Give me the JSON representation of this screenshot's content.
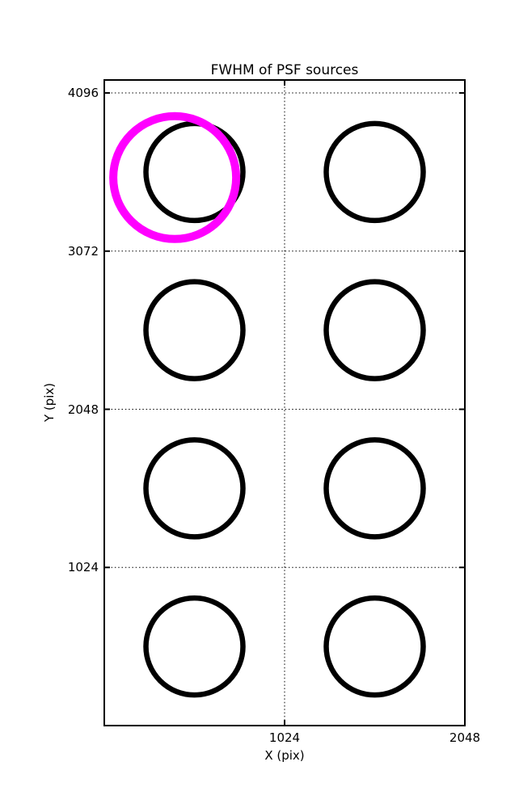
{
  "figure": {
    "background": "#ffffff"
  },
  "chart_data": {
    "type": "scatter",
    "title": "FWHM of PSF sources",
    "xlabel": "X (pix)",
    "ylabel": "Y (pix)",
    "xlim": [
      0,
      2048
    ],
    "ylim": [
      0,
      4180
    ],
    "xticks": [
      1024,
      2048
    ],
    "yticks": [
      1024,
      2048,
      3072,
      4096
    ],
    "grid": {
      "style": "dotted",
      "color": "#000000"
    },
    "axis_color": "#000000",
    "legend": "none",
    "series": [
      {
        "name": "psf-sources",
        "marker": "open-circle",
        "color": "#000000",
        "marker_radius_px": 60,
        "marker_stroke_px": 6.5,
        "points": [
          {
            "x": 512,
            "y": 3584
          },
          {
            "x": 1536,
            "y": 3584
          },
          {
            "x": 512,
            "y": 2560
          },
          {
            "x": 1536,
            "y": 2560
          },
          {
            "x": 512,
            "y": 1536
          },
          {
            "x": 1536,
            "y": 1536
          },
          {
            "x": 512,
            "y": 512
          },
          {
            "x": 1536,
            "y": 512
          }
        ]
      },
      {
        "name": "highlighted-source",
        "marker": "open-circle",
        "color": "#ff00ff",
        "marker_radius_px": 76,
        "marker_stroke_px": 10,
        "points": [
          {
            "x": 400,
            "y": 3548
          }
        ]
      }
    ]
  }
}
